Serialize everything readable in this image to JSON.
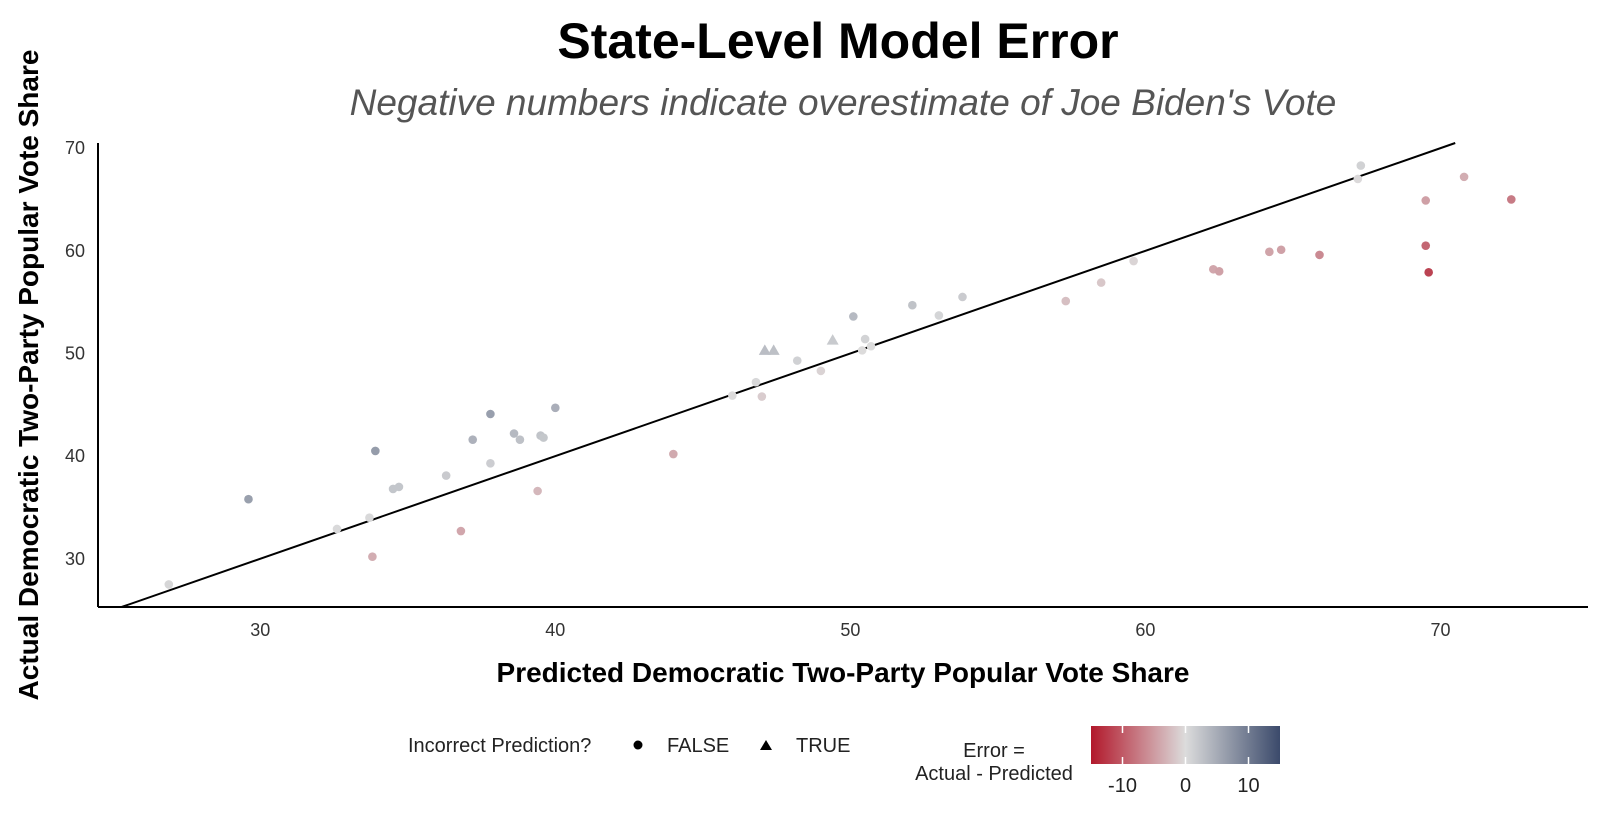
{
  "chart_data": {
    "type": "scatter",
    "title": "State-Level Model Error",
    "subtitle": "Negative numbers indicate overestimate of Joe Biden's Vote",
    "xlabel": "Predicted Democratic Two-Party Popular Vote Share",
    "ylabel": "Actual Democratic Two-Party Popular Vote Share",
    "xlim": [
      24.5,
      75
    ],
    "ylim": [
      25.3,
      70.5
    ],
    "x_ticks": [
      30,
      40,
      50,
      60,
      70
    ],
    "y_ticks": [
      30,
      40,
      50,
      60,
      70
    ],
    "reference_line": {
      "from": [
        25.3,
        25.3
      ],
      "to": [
        70.5,
        70.5
      ]
    },
    "points": [
      {
        "x": 26.9,
        "y": 27.5,
        "incorrect": false
      },
      {
        "x": 29.6,
        "y": 35.8,
        "incorrect": false
      },
      {
        "x": 32.6,
        "y": 32.9,
        "incorrect": false
      },
      {
        "x": 33.7,
        "y": 34.0,
        "incorrect": false
      },
      {
        "x": 33.8,
        "y": 30.2,
        "incorrect": false
      },
      {
        "x": 33.9,
        "y": 40.5,
        "incorrect": false
      },
      {
        "x": 34.5,
        "y": 36.8,
        "incorrect": false
      },
      {
        "x": 34.7,
        "y": 37.0,
        "incorrect": false
      },
      {
        "x": 36.3,
        "y": 38.1,
        "incorrect": false
      },
      {
        "x": 36.8,
        "y": 32.7,
        "incorrect": false
      },
      {
        "x": 37.2,
        "y": 41.6,
        "incorrect": false
      },
      {
        "x": 37.8,
        "y": 44.1,
        "incorrect": false
      },
      {
        "x": 37.8,
        "y": 39.3,
        "incorrect": false
      },
      {
        "x": 38.6,
        "y": 42.2,
        "incorrect": false
      },
      {
        "x": 38.8,
        "y": 41.6,
        "incorrect": false
      },
      {
        "x": 39.4,
        "y": 36.6,
        "incorrect": false
      },
      {
        "x": 39.5,
        "y": 42.0,
        "incorrect": false
      },
      {
        "x": 39.6,
        "y": 41.8,
        "incorrect": false
      },
      {
        "x": 40.0,
        "y": 44.7,
        "incorrect": false
      },
      {
        "x": 44.0,
        "y": 40.2,
        "incorrect": false
      },
      {
        "x": 46.0,
        "y": 45.9,
        "incorrect": false
      },
      {
        "x": 46.8,
        "y": 47.2,
        "incorrect": false
      },
      {
        "x": 47.0,
        "y": 45.8,
        "incorrect": false
      },
      {
        "x": 47.1,
        "y": 50.3,
        "incorrect": true
      },
      {
        "x": 47.4,
        "y": 50.3,
        "incorrect": true
      },
      {
        "x": 48.2,
        "y": 49.3,
        "incorrect": false
      },
      {
        "x": 49.0,
        "y": 48.3,
        "incorrect": false
      },
      {
        "x": 49.4,
        "y": 51.3,
        "incorrect": true
      },
      {
        "x": 50.1,
        "y": 53.6,
        "incorrect": false
      },
      {
        "x": 50.4,
        "y": 50.3,
        "incorrect": false
      },
      {
        "x": 50.5,
        "y": 51.4,
        "incorrect": false
      },
      {
        "x": 50.7,
        "y": 50.7,
        "incorrect": false
      },
      {
        "x": 52.1,
        "y": 54.7,
        "incorrect": false
      },
      {
        "x": 53.0,
        "y": 53.7,
        "incorrect": false
      },
      {
        "x": 53.8,
        "y": 55.5,
        "incorrect": false
      },
      {
        "x": 57.3,
        "y": 55.1,
        "incorrect": false
      },
      {
        "x": 58.5,
        "y": 56.9,
        "incorrect": false
      },
      {
        "x": 59.6,
        "y": 59.0,
        "incorrect": false
      },
      {
        "x": 62.3,
        "y": 58.2,
        "incorrect": false
      },
      {
        "x": 62.5,
        "y": 58.0,
        "incorrect": false
      },
      {
        "x": 64.2,
        "y": 59.9,
        "incorrect": false
      },
      {
        "x": 64.6,
        "y": 60.1,
        "incorrect": false
      },
      {
        "x": 65.9,
        "y": 59.6,
        "incorrect": false
      },
      {
        "x": 67.2,
        "y": 67.0,
        "incorrect": false
      },
      {
        "x": 67.3,
        "y": 68.3,
        "incorrect": false
      },
      {
        "x": 69.5,
        "y": 64.9,
        "incorrect": false
      },
      {
        "x": 69.5,
        "y": 60.5,
        "incorrect": false
      },
      {
        "x": 69.6,
        "y": 57.9,
        "incorrect": false
      },
      {
        "x": 70.8,
        "y": 67.2,
        "incorrect": false
      },
      {
        "x": 72.4,
        "y": 65.0,
        "incorrect": false
      }
    ],
    "color_scale": {
      "low": -15,
      "mid": 0,
      "high": 15,
      "low_color": "#b2182b",
      "mid_color": "#dcdcdc",
      "high_color": "#3b4a6b",
      "ticks": [
        -10,
        0,
        10
      ]
    }
  },
  "legend": {
    "shape_title": "Incorrect Prediction?",
    "shape_false": "FALSE",
    "shape_true": "TRUE",
    "color_title_line1": "Error =",
    "color_title_line2": "Actual - Predicted"
  }
}
